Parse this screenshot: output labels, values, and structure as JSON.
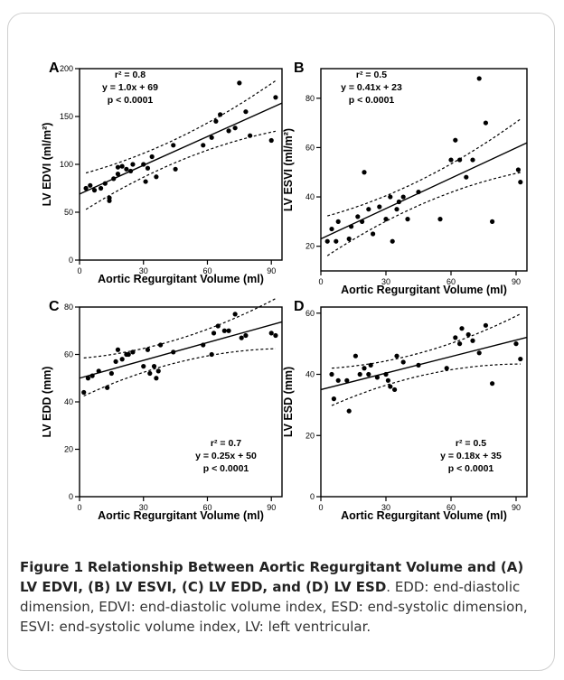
{
  "caption": {
    "label": "Figure 1",
    "title": "Relationship Between Aortic Regurgitant Volume and (A) LV EDVI, (B) LV ESVI, (C) LV EDD, and (D) LV ESD",
    "body": ". EDD: end-diastolic dimension, EDVI: end-diastolic volume index, ESD: end-systolic dimension, ESVI: end-systolic volume index, LV: left ventricular."
  },
  "chart_data": [
    {
      "type": "scatter",
      "panel": "A",
      "xlabel": "Aortic Regurgitant Volume (ml)",
      "ylabel": "LV EDVI (ml/m²)",
      "xlim": [
        0,
        95
      ],
      "ylim": [
        0,
        200
      ],
      "xticks": [
        0,
        30,
        60,
        90
      ],
      "yticks": [
        0,
        50,
        100,
        150,
        200
      ],
      "stats": [
        "r² = 0.8",
        "y = 1.0x + 69",
        "p < 0.0001"
      ],
      "fit": {
        "slope": 1.0,
        "intercept": 69
      },
      "points": [
        [
          3,
          75
        ],
        [
          5,
          78
        ],
        [
          7,
          73
        ],
        [
          10,
          75
        ],
        [
          12,
          80
        ],
        [
          14,
          62
        ],
        [
          14,
          65
        ],
        [
          16,
          85
        ],
        [
          18,
          90
        ],
        [
          18,
          97
        ],
        [
          20,
          98
        ],
        [
          22,
          95
        ],
        [
          24,
          93
        ],
        [
          25,
          100
        ],
        [
          30,
          100
        ],
        [
          31,
          82
        ],
        [
          32,
          96
        ],
        [
          34,
          108
        ],
        [
          36,
          87
        ],
        [
          44,
          120
        ],
        [
          45,
          95
        ],
        [
          58,
          120
        ],
        [
          62,
          128
        ],
        [
          64,
          145
        ],
        [
          66,
          152
        ],
        [
          70,
          135
        ],
        [
          73,
          138
        ],
        [
          75,
          185
        ],
        [
          78,
          155
        ],
        [
          80,
          130
        ],
        [
          90,
          125
        ],
        [
          92,
          170
        ]
      ]
    },
    {
      "type": "scatter",
      "panel": "B",
      "xlabel": "Aortic Regurgitant Volume (ml)",
      "ylabel": "LV ESVI (ml/m²)",
      "xlim": [
        0,
        95
      ],
      "ylim": [
        10,
        92
      ],
      "xticks": [
        0,
        30,
        60,
        90
      ],
      "yticks": [
        20,
        40,
        60,
        80
      ],
      "stats": [
        "r² = 0.5",
        "y = 0.41x + 23",
        "p < 0.0001"
      ],
      "fit": {
        "slope": 0.41,
        "intercept": 23
      },
      "points": [
        [
          3,
          22
        ],
        [
          5,
          27
        ],
        [
          7,
          22
        ],
        [
          8,
          30
        ],
        [
          13,
          23
        ],
        [
          14,
          28
        ],
        [
          17,
          32
        ],
        [
          19,
          30
        ],
        [
          20,
          50
        ],
        [
          22,
          35
        ],
        [
          24,
          25
        ],
        [
          27,
          36
        ],
        [
          30,
          31
        ],
        [
          32,
          40
        ],
        [
          33,
          22
        ],
        [
          35,
          35
        ],
        [
          36,
          38
        ],
        [
          38,
          40
        ],
        [
          40,
          31
        ],
        [
          45,
          42
        ],
        [
          55,
          31
        ],
        [
          60,
          55
        ],
        [
          62,
          63
        ],
        [
          64,
          55
        ],
        [
          67,
          48
        ],
        [
          70,
          55
        ],
        [
          73,
          88
        ],
        [
          76,
          70
        ],
        [
          79,
          30
        ],
        [
          91,
          51
        ],
        [
          92,
          46
        ]
      ]
    },
    {
      "type": "scatter",
      "panel": "C",
      "xlabel": "Aortic Regurgitant Volume (ml)",
      "ylabel": "LV EDD (mm)",
      "xlim": [
        0,
        95
      ],
      "ylim": [
        0,
        80
      ],
      "xticks": [
        0,
        30,
        60,
        90
      ],
      "yticks": [
        0,
        20,
        40,
        60,
        80
      ],
      "stats": [
        "r² = 0.7",
        "y = 0.25x + 50",
        "p < 0.0001"
      ],
      "fit": {
        "slope": 0.25,
        "intercept": 50
      },
      "points": [
        [
          2,
          44
        ],
        [
          4,
          50
        ],
        [
          6,
          51
        ],
        [
          9,
          53
        ],
        [
          13,
          46
        ],
        [
          15,
          52
        ],
        [
          17,
          57
        ],
        [
          18,
          62
        ],
        [
          20,
          58
        ],
        [
          22,
          60
        ],
        [
          23,
          60
        ],
        [
          25,
          61
        ],
        [
          30,
          55
        ],
        [
          32,
          62
        ],
        [
          33,
          52
        ],
        [
          35,
          55
        ],
        [
          36,
          50
        ],
        [
          37,
          53
        ],
        [
          38,
          64
        ],
        [
          44,
          61
        ],
        [
          58,
          64
        ],
        [
          62,
          60
        ],
        [
          63,
          69
        ],
        [
          65,
          72
        ],
        [
          68,
          70
        ],
        [
          70,
          70
        ],
        [
          73,
          77
        ],
        [
          76,
          67
        ],
        [
          78,
          68
        ],
        [
          90,
          69
        ],
        [
          92,
          68
        ]
      ]
    },
    {
      "type": "scatter",
      "panel": "D",
      "xlabel": "Aortic Regurgitant Volume (ml)",
      "ylabel": "LV ESD (mm)",
      "xlim": [
        0,
        95
      ],
      "ylim": [
        0,
        62
      ],
      "xticks": [
        0,
        30,
        60,
        90
      ],
      "yticks": [
        0,
        20,
        40,
        60
      ],
      "stats": [
        "r² = 0.5",
        "y = 0.18x + 35",
        "p < 0.0001"
      ],
      "fit": {
        "slope": 0.18,
        "intercept": 35
      },
      "points": [
        [
          5,
          40
        ],
        [
          6,
          32
        ],
        [
          8,
          38
        ],
        [
          12,
          38
        ],
        [
          13,
          28
        ],
        [
          16,
          46
        ],
        [
          18,
          40
        ],
        [
          20,
          42
        ],
        [
          22,
          40
        ],
        [
          23,
          43
        ],
        [
          26,
          39
        ],
        [
          30,
          40
        ],
        [
          31,
          38
        ],
        [
          32,
          36
        ],
        [
          34,
          35
        ],
        [
          35,
          46
        ],
        [
          38,
          44
        ],
        [
          45,
          43
        ],
        [
          58,
          42
        ],
        [
          62,
          52
        ],
        [
          64,
          50
        ],
        [
          65,
          55
        ],
        [
          68,
          53
        ],
        [
          70,
          51
        ],
        [
          73,
          47
        ],
        [
          76,
          56
        ],
        [
          79,
          37
        ],
        [
          90,
          50
        ],
        [
          92,
          45
        ]
      ]
    }
  ]
}
